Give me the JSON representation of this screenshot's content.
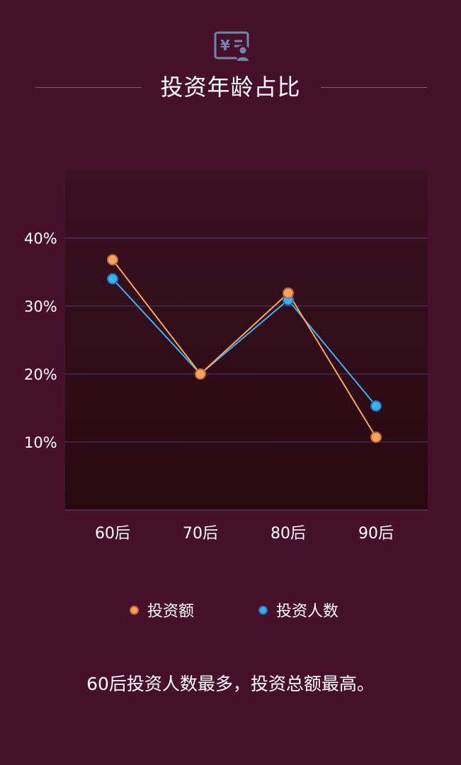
{
  "page": {
    "title": "投资年龄占比",
    "caption": "60后投资人数最多，投资总额最高。",
    "header_icon": "yuan-document-person-icon",
    "colors": {
      "background": "#47112b",
      "plot_top": "#3a1223",
      "plot_bottom": "#28090f",
      "grid": "#4c3a6a",
      "amount": "#f7a65c",
      "amount_stroke": "#c8643a",
      "people": "#34b4f5",
      "people_stroke": "#2a6fb0",
      "icon": "#6d87ab"
    }
  },
  "chart_data": {
    "type": "line",
    "categories": [
      "60后",
      "70后",
      "80后",
      "90后"
    ],
    "y_ticks": [
      {
        "value": 10,
        "label": "10%"
      },
      {
        "value": 20,
        "label": "20%"
      },
      {
        "value": 30,
        "label": "30%"
      },
      {
        "value": 40,
        "label": "40%"
      }
    ],
    "ylim": [
      0,
      50
    ],
    "grid": true,
    "legend_position": "bottom",
    "series": [
      {
        "name": "投资额",
        "values": [
          36.8,
          20.0,
          31.9,
          10.7
        ]
      },
      {
        "name": "投资人数",
        "values": [
          34.0,
          20.0,
          30.9,
          15.3
        ]
      }
    ]
  }
}
